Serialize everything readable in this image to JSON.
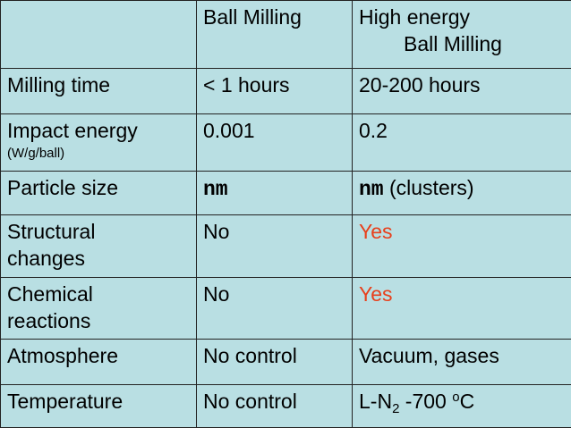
{
  "header": {
    "col1": "",
    "col2": "Ball Milling",
    "col3_line1": "High energy",
    "col3_line2": "Ball Milling"
  },
  "rows": [
    {
      "label": "Milling time",
      "ball": "< 1 hours",
      "high": "20-200 hours"
    },
    {
      "label": "Impact energy",
      "sublabel": "(W/g/ball)",
      "ball": "0.001",
      "high": "0.2"
    },
    {
      "label": "Particle size",
      "ball_unit": "nm",
      "high_unit": "nm",
      "high_suffix": " (clusters)"
    },
    {
      "label_line1": "Structural",
      "label_line2": "changes",
      "ball": "No",
      "high": "Yes"
    },
    {
      "label_line1": "Chemical",
      "label_line2": "reactions",
      "ball": "No",
      "high": "Yes"
    },
    {
      "label": "Atmosphere",
      "ball": "No control",
      "high": "Vacuum, gases"
    },
    {
      "label": "Temperature",
      "ball": "No control",
      "high_prefix": "L-N",
      "high_sub": "2",
      "high_mid": " -700 ",
      "high_sup": "o",
      "high_suffix": "C"
    }
  ],
  "colors": {
    "cell_background": "#b9dfe3",
    "highlight_text": "#e8401c",
    "border": "#222222"
  }
}
